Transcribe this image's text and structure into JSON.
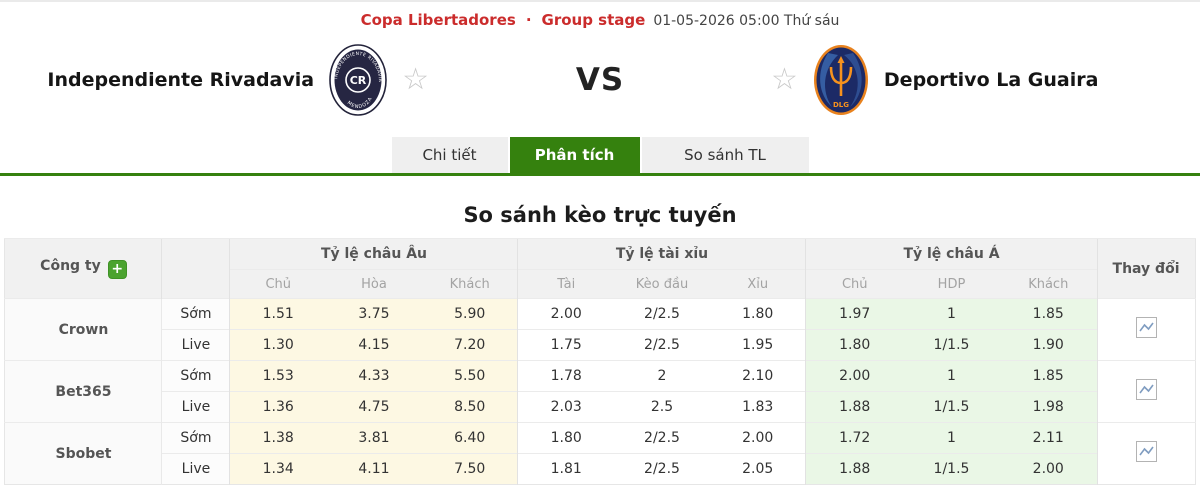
{
  "meta": {
    "league": "Copa Libertadores",
    "dot": "·",
    "stage": "Group stage",
    "datetime": "01-05-2026 05:00 Thứ sáu"
  },
  "match": {
    "vs_label": "VS",
    "home": {
      "name": "Independiente Rivadavia",
      "badge_text": "CR",
      "badge_top": "INDEPENDIENTE RIVADAVIA",
      "badge_bottom": "MENDOZA"
    },
    "away": {
      "name": "Deportivo La Guaira",
      "badge_bottom": "DLG"
    }
  },
  "tabs": [
    {
      "key": "chi-tiet",
      "label": "Chi tiết",
      "active": false
    },
    {
      "key": "phan-tich",
      "label": "Phân tích",
      "active": true
    },
    {
      "key": "so-sanh-tl",
      "label": "So sánh TL",
      "active": false
    }
  ],
  "section_title": "So sánh kèo trực tuyến",
  "odds_table": {
    "company_header": "Công ty",
    "change_header": "Thay đổi",
    "groups": [
      {
        "label": "Tỷ lệ châu Âu",
        "cols": [
          "Chủ",
          "Hòa",
          "Khách"
        ]
      },
      {
        "label": "Tỷ lệ tài xỉu",
        "cols": [
          "Tài",
          "Kèo đầu",
          "Xỉu"
        ]
      },
      {
        "label": "Tỷ lệ châu Á",
        "cols": [
          "Chủ",
          "HDP",
          "Khách"
        ]
      }
    ],
    "bookmakers": [
      {
        "name": "Crown",
        "rows": [
          {
            "type": "Sớm",
            "eu": [
              "1.51",
              "3.75",
              "5.90"
            ],
            "ou": [
              "2.00",
              "2/2.5",
              "1.80"
            ],
            "ah": [
              "1.97",
              "1",
              "1.85"
            ]
          },
          {
            "type": "Live",
            "eu": [
              "1.30",
              "4.15",
              "7.20"
            ],
            "ou": [
              "1.75",
              "2/2.5",
              "1.95"
            ],
            "ah": [
              "1.80",
              "1/1.5",
              "1.90"
            ]
          }
        ]
      },
      {
        "name": "Bet365",
        "rows": [
          {
            "type": "Sớm",
            "eu": [
              "1.53",
              "4.33",
              "5.50"
            ],
            "ou": [
              "1.78",
              "2",
              "2.10"
            ],
            "ah": [
              "2.00",
              "1",
              "1.85"
            ]
          },
          {
            "type": "Live",
            "eu": [
              "1.36",
              "4.75",
              "8.50"
            ],
            "ou": [
              "2.03",
              "2.5",
              "1.83"
            ],
            "ah": [
              "1.88",
              "1/1.5",
              "1.98"
            ]
          }
        ]
      },
      {
        "name": "Sbobet",
        "rows": [
          {
            "type": "Sớm",
            "eu": [
              "1.38",
              "3.81",
              "6.40"
            ],
            "ou": [
              "1.80",
              "2/2.5",
              "2.00"
            ],
            "ah": [
              "1.72",
              "1",
              "2.11"
            ]
          },
          {
            "type": "Live",
            "eu": [
              "1.34",
              "4.11",
              "7.50"
            ],
            "ou": [
              "1.81",
              "2/2.5",
              "2.05"
            ],
            "ah": [
              "1.88",
              "1/1.5",
              "2.00"
            ]
          }
        ]
      }
    ]
  },
  "colors": {
    "accent_red": "#cb2c2c",
    "accent_green": "#35810e",
    "plus_green": "#4ba32f",
    "eu_col_bg": "#fdf8e3",
    "ah_col_bg": "#eaf7e6",
    "header_bg": "#f1f1f1"
  }
}
